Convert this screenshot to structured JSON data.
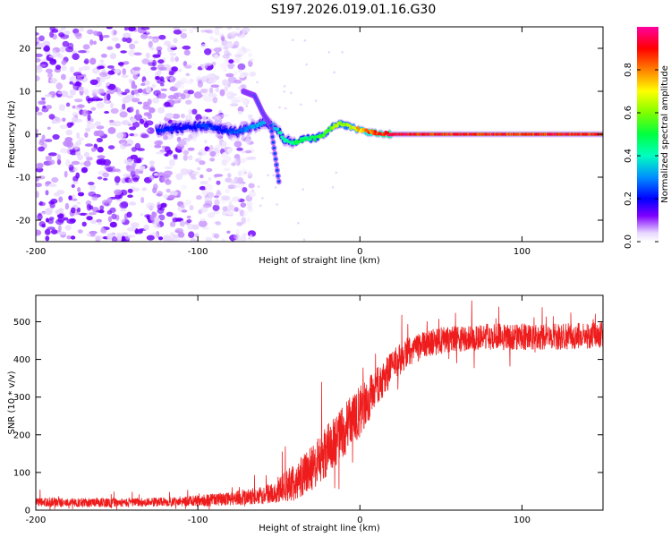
{
  "title": "S197.2026.019.01.16.G30",
  "chart_data": [
    {
      "type": "heatmap",
      "name": "spectrogram",
      "xlabel": "Height of straight line (km)",
      "ylabel": "Frequency (Hz)",
      "xlim": [
        -200,
        150
      ],
      "ylim": [
        -25,
        25
      ],
      "xticks": [
        -200,
        -100,
        0,
        100
      ],
      "xtick_labels": [
        "-200",
        "-100",
        "0",
        "100"
      ],
      "yticks": [
        -20,
        -10,
        0,
        10,
        20
      ],
      "ytick_labels": [
        "-20",
        "-10",
        "0",
        "10",
        "20"
      ],
      "colorbar": {
        "label": "Normalized spectral amplitude",
        "range": [
          0,
          1
        ],
        "ticks": [
          0,
          0.2,
          0.4,
          0.6,
          0.8
        ],
        "tick_labels": [
          "0.0",
          "0.2",
          "0.4",
          "0.6",
          "0.8"
        ],
        "colors": [
          "#ffffff",
          "#e8d8ff",
          "#7a00ff",
          "#0000ff",
          "#00c8ff",
          "#00ff80",
          "#80ff00",
          "#ffff00",
          "#ff8000",
          "#ff0000",
          "#ff00a0"
        ]
      },
      "noise_region_x": [
        -200,
        -78
      ],
      "ridge": {
        "x": [
          -125,
          -110,
          -95,
          -85,
          -75,
          -65,
          -58,
          -52,
          -46,
          -40,
          -34,
          -28,
          -22,
          -16,
          -12,
          -8,
          -4,
          0,
          6,
          12,
          18,
          30,
          60,
          100,
          150
        ],
        "freq": [
          1,
          1.5,
          2,
          1,
          0.5,
          2,
          3,
          1.5,
          -1.5,
          -2,
          -1,
          -1,
          0,
          2,
          2.5,
          2,
          1.5,
          1,
          0.5,
          0.3,
          0,
          0,
          0,
          0,
          0
        ],
        "amplitude": [
          0.25,
          0.2,
          0.25,
          0.22,
          0.28,
          0.32,
          0.35,
          0.4,
          0.45,
          0.5,
          0.5,
          0.52,
          0.58,
          0.62,
          0.65,
          0.62,
          0.7,
          0.8,
          0.88,
          0.92,
          0.97,
          0.95,
          0.95,
          0.92,
          0.95
        ]
      },
      "side_branch": {
        "x": [
          -72,
          -65,
          -60,
          -55,
          -50
        ],
        "freq": [
          10,
          9,
          5,
          2,
          -11
        ]
      }
    },
    {
      "type": "line",
      "name": "snr",
      "xlabel": "Height of straight line (km)",
      "ylabel": "SNR (10 * v/v)",
      "xlim": [
        -200,
        150
      ],
      "ylim": [
        0,
        570
      ],
      "xticks": [
        -200,
        -100,
        0,
        100
      ],
      "xtick_labels": [
        "-200",
        "-100",
        "0",
        "100"
      ],
      "yticks": [
        0,
        100,
        200,
        300,
        400,
        500
      ],
      "ytick_labels": [
        "0",
        "100",
        "200",
        "300",
        "400",
        "500"
      ],
      "color": "#ee1c1c",
      "envelope": {
        "x": [
          -200,
          -150,
          -120,
          -100,
          -80,
          -60,
          -50,
          -40,
          -30,
          -20,
          -10,
          0,
          10,
          20,
          30,
          40,
          50,
          60,
          80,
          100,
          120,
          150
        ],
        "median": [
          20,
          20,
          22,
          25,
          30,
          40,
          55,
          75,
          110,
          160,
          210,
          260,
          320,
          380,
          420,
          440,
          450,
          455,
          460,
          460,
          460,
          465
        ],
        "spread": [
          12,
          12,
          12,
          15,
          18,
          25,
          35,
          50,
          60,
          70,
          70,
          70,
          55,
          45,
          40,
          35,
          35,
          35,
          35,
          35,
          35,
          35
        ]
      }
    }
  ]
}
